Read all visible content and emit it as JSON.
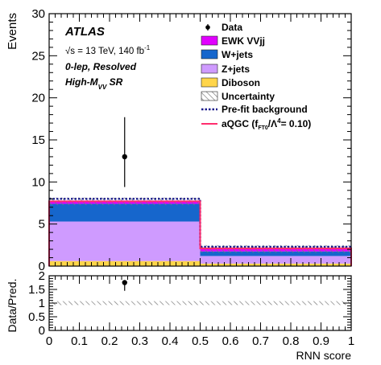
{
  "colors": {
    "ewk": "#e100ff",
    "wjets": "#1666cc",
    "zjets": "#cf9bff",
    "diboson": "#ffd54a",
    "prefit": "#1c1c8c",
    "aqgc": "#ff2d6e",
    "data": "#000000"
  },
  "chart_data": [
    {
      "type": "bar",
      "subtype": "stacked-histogram",
      "ylabel": "Events",
      "xlim": [
        0,
        1
      ],
      "ylim": [
        0,
        30
      ],
      "y_ticks": [
        "0",
        "5",
        "10",
        "15",
        "20",
        "25",
        "30"
      ],
      "bins": [
        [
          0,
          0.5
        ],
        [
          0.5,
          1
        ]
      ],
      "atlas_label": "ATLAS",
      "annotations": {
        "energy_prefix": "√s = 13 TeV, 140 fb",
        "energy_sup": "-1",
        "channel": "0-lep, Resolved",
        "region_prefix": "High-M",
        "region_sub": "VV",
        "region_suffix": " SR"
      },
      "legend": {
        "placement": "top-right",
        "data": "Data",
        "ewk_vvjj": "EWK VVjj",
        "wjets": "W+jets",
        "zjets": "Z+jets",
        "diboson": "Diboson",
        "uncertainty": "Uncertainty",
        "prefit": "Pre-fit background",
        "aqgc_prefix": "aQGC (f",
        "aqgc_sub": "FT0",
        "aqgc_mid": "/Λ",
        "aqgc_sup": "4",
        "aqgc_suffix": "= 0.10)"
      },
      "series": [
        {
          "name": "Diboson",
          "values": [
            0.6,
            0.3
          ]
        },
        {
          "name": "Z+jets",
          "values": [
            4.7,
            0.9
          ]
        },
        {
          "name": "W+jets",
          "values": [
            2.1,
            0.55
          ]
        },
        {
          "name": "EWK VVjj",
          "values": [
            0.3,
            0.3
          ]
        },
        {
          "name": "Uncertainty",
          "values": [
            0.45,
            0.45
          ]
        },
        {
          "name": "Pre-fit background",
          "values": [
            8.0,
            2.3
          ]
        },
        {
          "name": "aQGC (fFT0/Λ4= 0.10)",
          "values": [
            7.7,
            2.1
          ]
        }
      ],
      "data_points": [
        {
          "x": 0.25,
          "y": 13.0,
          "yerr_up": 4.7,
          "yerr_down": 3.6
        }
      ]
    },
    {
      "type": "scatter",
      "ylabel": "Data/Pred.",
      "xlabel": "RNN score",
      "xlim": [
        0,
        1
      ],
      "ylim": [
        0,
        2
      ],
      "y_ticks": [
        "0",
        "0.5",
        "1",
        "1.5",
        "2"
      ],
      "x_ticks": [
        "0",
        "0.1",
        "0.2",
        "0.3",
        "0.4",
        "0.5",
        "0.6",
        "0.7",
        "0.8",
        "0.9",
        "1"
      ],
      "ratio_points": [
        {
          "x": 0.25,
          "y": 1.75,
          "err_down": 0.3
        }
      ],
      "uncertainty_band": [
        0.93,
        1.07
      ]
    }
  ]
}
